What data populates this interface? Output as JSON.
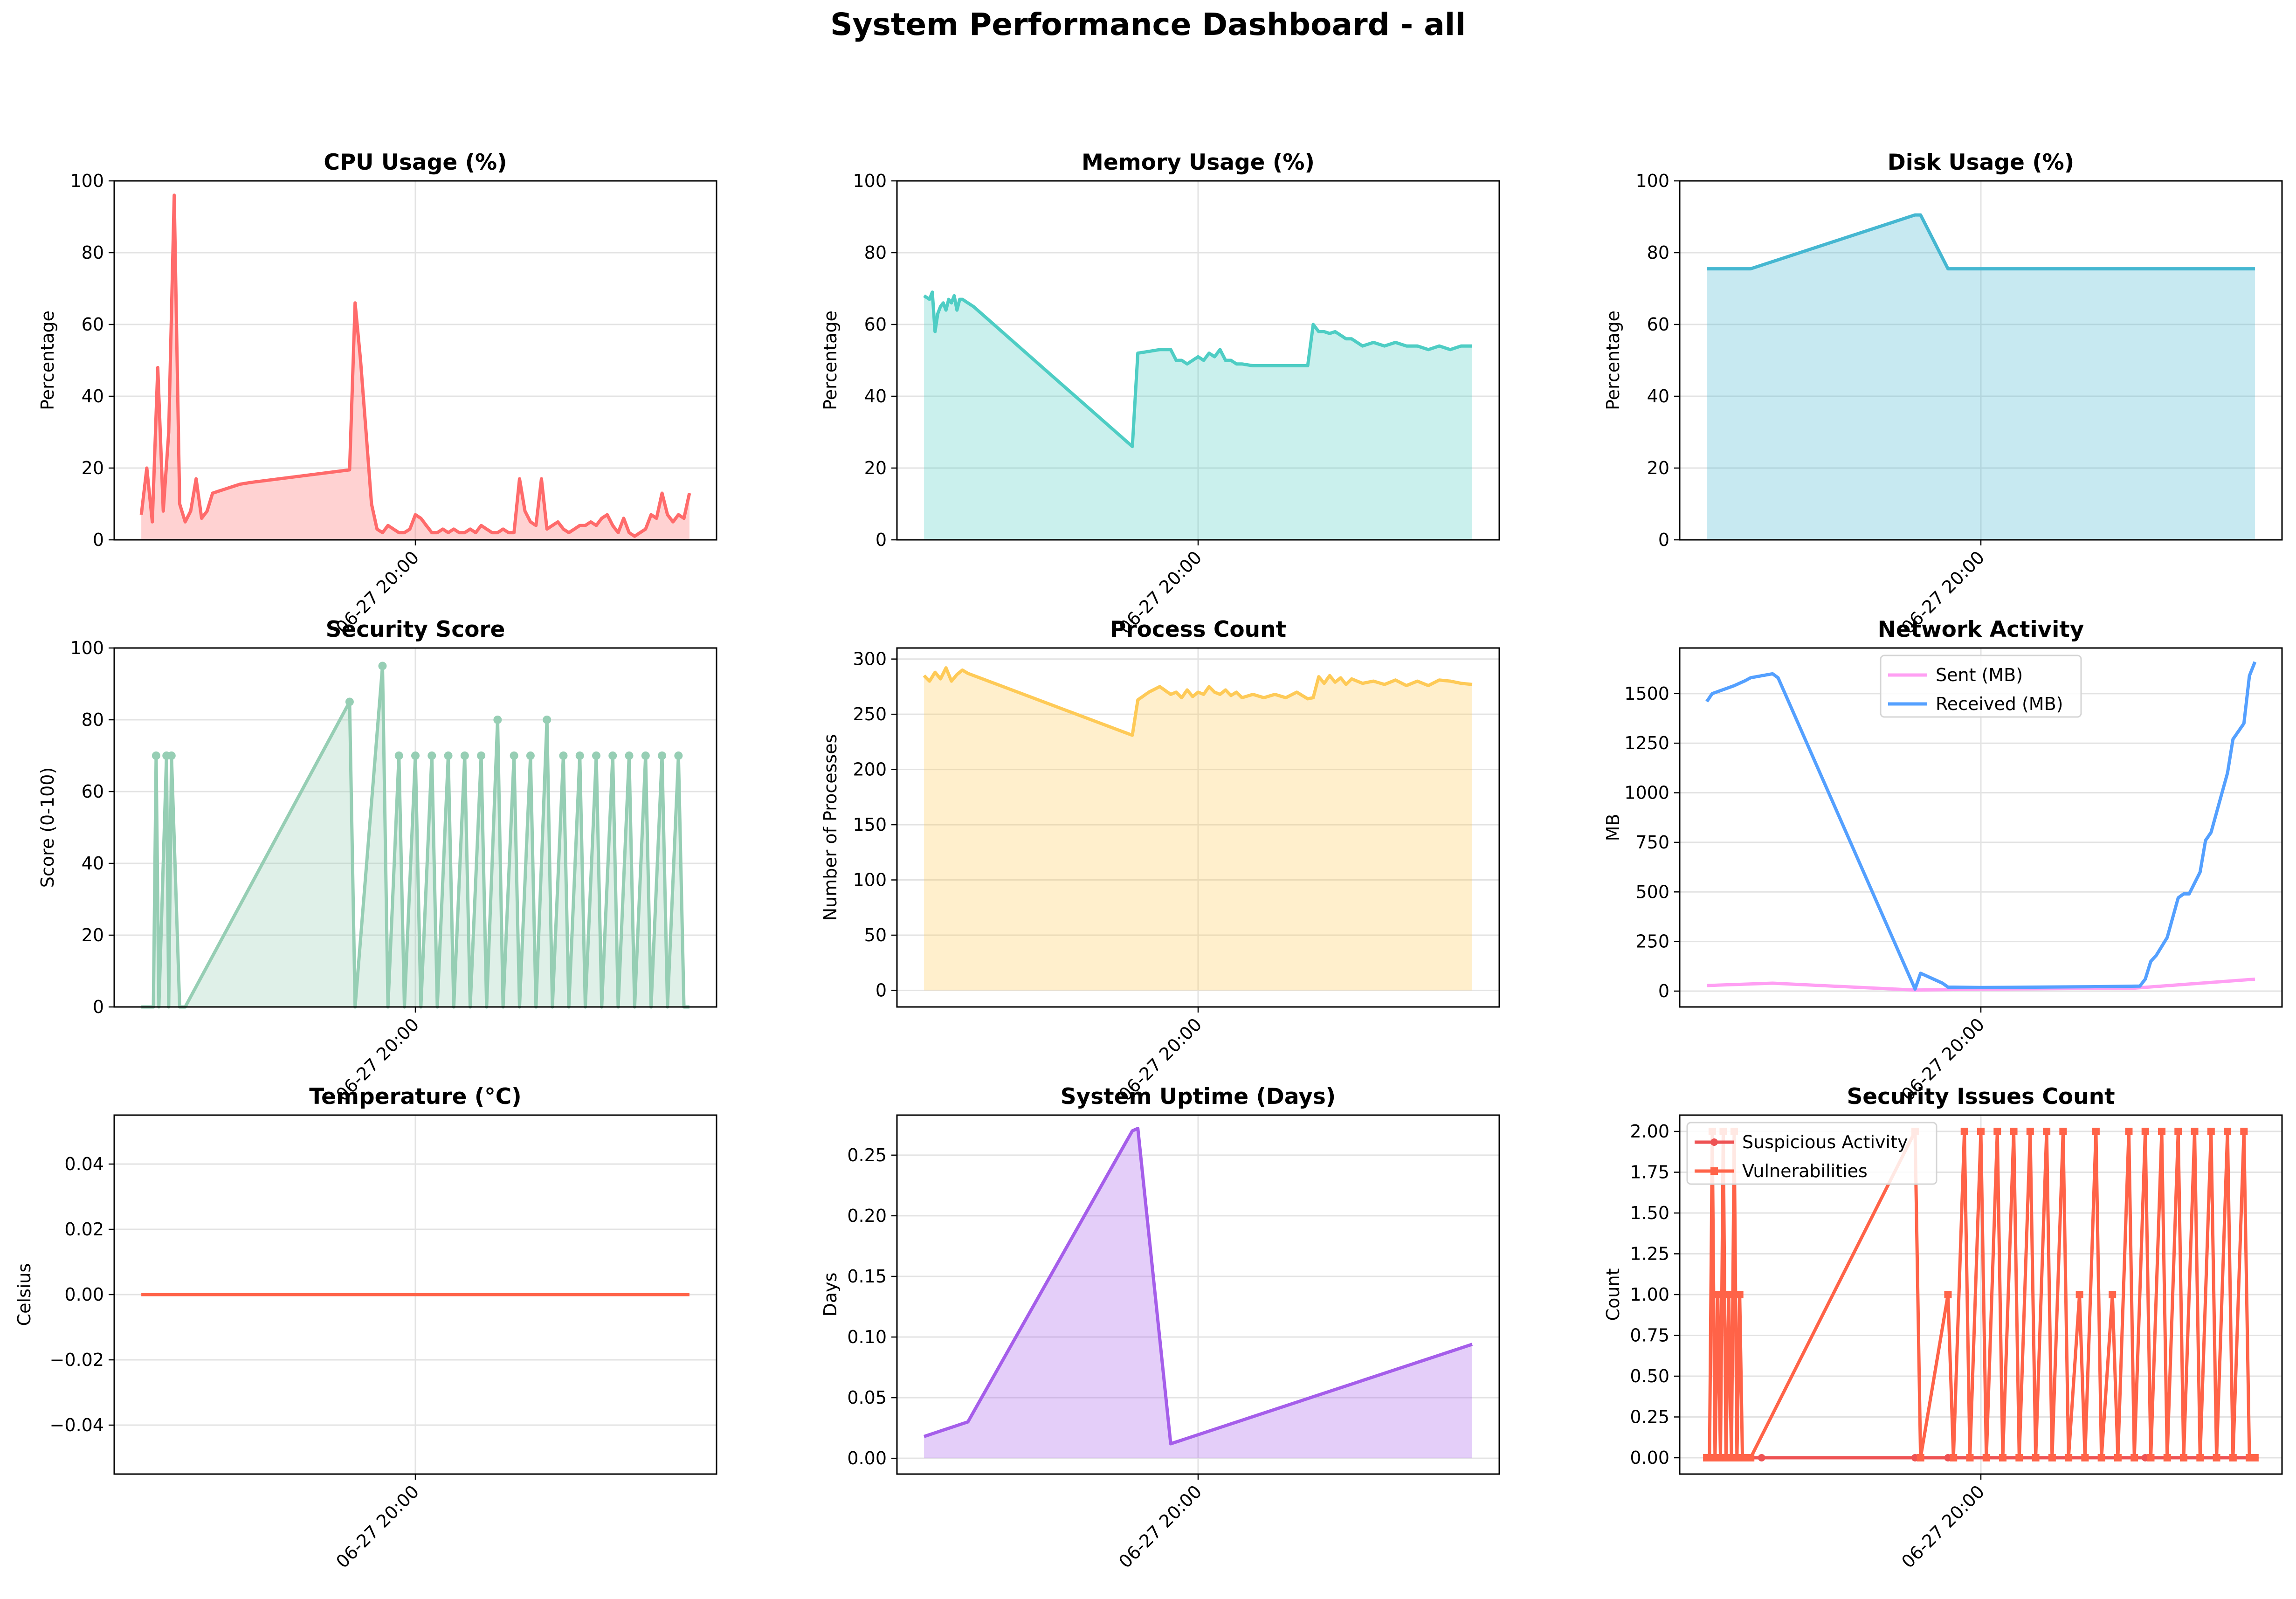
{
  "title": "System Performance Dashboard - all",
  "chart_data": [
    {
      "id": "cpu",
      "type": "area",
      "title": "CPU Usage (%)",
      "ylabel": "Percentage",
      "xlabel": "",
      "x_tick_label": "06-27 20:00",
      "ylim": [
        0,
        100
      ],
      "yticks": [
        "0",
        "20",
        "40",
        "60",
        "80",
        "100"
      ],
      "grid": true,
      "series": [
        {
          "color": "#ff6b6b",
          "fill": true,
          "x": [
            0,
            0.01,
            0.02,
            0.03,
            0.04,
            0.05,
            0.06,
            0.07,
            0.08,
            0.09,
            0.1,
            0.11,
            0.12,
            0.13,
            0.14,
            0.15,
            0.16,
            0.17,
            0.18,
            0.2,
            0.38,
            0.39,
            0.4,
            0.41,
            0.42,
            0.43,
            0.44,
            0.45,
            0.46,
            0.47,
            0.48,
            0.49,
            0.5,
            0.51,
            0.52,
            0.53,
            0.54,
            0.55,
            0.56,
            0.57,
            0.58,
            0.59,
            0.6,
            0.61,
            0.62,
            0.63,
            0.64,
            0.65,
            0.66,
            0.67,
            0.68,
            0.69,
            0.7,
            0.71,
            0.72,
            0.73,
            0.74,
            0.75,
            0.76,
            0.77,
            0.78,
            0.79,
            0.8,
            0.81,
            0.82,
            0.83,
            0.84,
            0.85,
            0.86,
            0.87,
            0.88,
            0.89,
            0.9,
            0.91,
            0.92,
            0.93,
            0.94,
            0.95,
            0.96,
            0.97,
            0.98,
            0.99,
            1.0
          ],
          "y": [
            7,
            20,
            5,
            48,
            8,
            30,
            96,
            10,
            5,
            8,
            17,
            6,
            8,
            13,
            13.5,
            14,
            14.5,
            15,
            15.5,
            16,
            19.5,
            66,
            50,
            30,
            10,
            3,
            2,
            4,
            3,
            2,
            2,
            3,
            7,
            6,
            4,
            2,
            2,
            3,
            2,
            3,
            2,
            2,
            3,
            2,
            4,
            3,
            2,
            2,
            3,
            2,
            2,
            17,
            8,
            5,
            4,
            17,
            3,
            4,
            5,
            3,
            2,
            3,
            4,
            4,
            5,
            4,
            6,
            7,
            4,
            2,
            6,
            2,
            1,
            2,
            3,
            7,
            6,
            13,
            7,
            5,
            7,
            6,
            13
          ]
        }
      ]
    },
    {
      "id": "memory",
      "type": "area",
      "title": "Memory Usage (%)",
      "ylabel": "Percentage",
      "xlabel": "",
      "x_tick_label": "06-27 20:00",
      "ylim": [
        0,
        100
      ],
      "yticks": [
        "0",
        "20",
        "40",
        "60",
        "80",
        "100"
      ],
      "grid": true,
      "series": [
        {
          "color": "#4ecdc4",
          "fill": true,
          "x": [
            0,
            0.01,
            0.015,
            0.02,
            0.025,
            0.03,
            0.035,
            0.04,
            0.045,
            0.05,
            0.055,
            0.06,
            0.065,
            0.07,
            0.08,
            0.09,
            0.38,
            0.39,
            0.41,
            0.43,
            0.45,
            0.46,
            0.47,
            0.48,
            0.49,
            0.5,
            0.51,
            0.52,
            0.53,
            0.54,
            0.55,
            0.56,
            0.57,
            0.58,
            0.6,
            0.62,
            0.64,
            0.66,
            0.68,
            0.7,
            0.71,
            0.72,
            0.73,
            0.74,
            0.75,
            0.76,
            0.77,
            0.78,
            0.8,
            0.82,
            0.84,
            0.86,
            0.88,
            0.9,
            0.92,
            0.94,
            0.96,
            0.98,
            1.0
          ],
          "y": [
            68,
            67,
            69,
            58,
            63,
            65,
            66,
            64,
            67,
            66,
            68,
            64,
            67,
            67,
            66,
            65,
            26,
            52,
            52.5,
            53,
            53,
            50,
            50,
            49,
            50,
            51,
            50,
            52,
            51,
            53,
            50,
            50,
            49,
            49,
            48.5,
            48.5,
            48.5,
            48.5,
            48.5,
            48.5,
            60,
            58,
            58,
            57.5,
            58,
            57,
            56,
            56,
            54,
            55,
            54,
            55,
            54,
            54,
            53,
            54,
            53,
            54,
            54
          ]
        }
      ]
    },
    {
      "id": "disk",
      "type": "area",
      "title": "Disk Usage (%)",
      "ylabel": "Percentage",
      "xlabel": "",
      "x_tick_label": "06-27 20:00",
      "ylim": [
        0,
        100
      ],
      "yticks": [
        "0",
        "20",
        "40",
        "60",
        "80",
        "100"
      ],
      "grid": true,
      "series": [
        {
          "color": "#45b7d1",
          "fill": true,
          "x": [
            0,
            0.08,
            0.38,
            0.39,
            0.44,
            1.0
          ],
          "y": [
            75.5,
            75.5,
            90.5,
            90.5,
            75.5,
            75.5
          ]
        }
      ]
    },
    {
      "id": "security-score",
      "type": "stem-area",
      "title": "Security Score",
      "ylabel": "Score (0-100)",
      "xlabel": "",
      "x_tick_label": "06-27 20:00",
      "ylim": [
        0,
        100
      ],
      "yticks": [
        "0",
        "20",
        "40",
        "60",
        "80",
        "100"
      ],
      "grid": true,
      "series": [
        {
          "color": "#96ceb4",
          "fill": true,
          "markers": true,
          "x": [
            0,
            0.022,
            0.027,
            0.032,
            0.046,
            0.05,
            0.055,
            0.07,
            0.08,
            0.38,
            0.39,
            0.44,
            0.45,
            0.47,
            0.48,
            0.5,
            0.51,
            0.53,
            0.54,
            0.56,
            0.57,
            0.59,
            0.6,
            0.62,
            0.63,
            0.65,
            0.66,
            0.68,
            0.69,
            0.71,
            0.72,
            0.74,
            0.75,
            0.77,
            0.78,
            0.8,
            0.81,
            0.83,
            0.84,
            0.86,
            0.87,
            0.89,
            0.9,
            0.92,
            0.93,
            0.95,
            0.96,
            0.98,
            0.99,
            1.0
          ],
          "y": [
            0,
            0,
            70,
            0,
            70,
            0,
            70,
            0,
            0,
            85,
            0,
            95,
            0,
            70,
            0,
            70,
            0,
            70,
            0,
            70,
            0,
            70,
            0,
            70,
            0,
            80,
            0,
            70,
            0,
            70,
            0,
            80,
            0,
            70,
            0,
            70,
            0,
            70,
            0,
            70,
            0,
            70,
            0,
            70,
            0,
            70,
            0,
            70,
            0,
            0
          ]
        }
      ]
    },
    {
      "id": "process-count",
      "type": "area",
      "title": "Process Count",
      "ylabel": "Number of Processes",
      "xlabel": "",
      "x_tick_label": "06-27 20:00",
      "ylim": [
        -15,
        310
      ],
      "yticks": [
        "0",
        "50",
        "100",
        "150",
        "200",
        "250",
        "300"
      ],
      "grid": true,
      "series": [
        {
          "color": "#feca57",
          "fill": true,
          "x": [
            0,
            0.01,
            0.02,
            0.03,
            0.04,
            0.05,
            0.06,
            0.07,
            0.08,
            0.38,
            0.39,
            0.41,
            0.43,
            0.45,
            0.46,
            0.47,
            0.48,
            0.49,
            0.5,
            0.51,
            0.52,
            0.53,
            0.54,
            0.55,
            0.56,
            0.57,
            0.58,
            0.6,
            0.62,
            0.64,
            0.66,
            0.68,
            0.7,
            0.71,
            0.72,
            0.73,
            0.74,
            0.75,
            0.76,
            0.77,
            0.78,
            0.8,
            0.82,
            0.84,
            0.86,
            0.88,
            0.9,
            0.92,
            0.94,
            0.96,
            0.98,
            1.0
          ],
          "y": [
            285,
            280,
            288,
            282,
            292,
            280,
            286,
            290,
            287,
            231,
            263,
            270,
            275,
            268,
            270,
            265,
            272,
            266,
            270,
            268,
            275,
            270,
            268,
            272,
            267,
            270,
            265,
            268,
            265,
            268,
            265,
            270,
            264,
            265,
            284,
            278,
            285,
            279,
            283,
            277,
            282,
            278,
            280,
            277,
            281,
            276,
            280,
            276,
            281,
            280,
            278,
            277
          ]
        }
      ]
    },
    {
      "id": "network",
      "type": "line",
      "title": "Network Activity",
      "ylabel": "MB",
      "xlabel": "",
      "x_tick_label": "06-27 20:00",
      "ylim": [
        -80,
        1730
      ],
      "yticks": [
        "0",
        "250",
        "500",
        "750",
        "1000",
        "1250",
        "1500"
      ],
      "grid": true,
      "legend": {
        "position": "upper center",
        "entries": [
          "Sent (MB)",
          "Received (MB)"
        ]
      },
      "series": [
        {
          "name": "Sent (MB)",
          "color": "#ff9ff3",
          "x": [
            0,
            0.12,
            0.38,
            0.5,
            0.78,
            1.0
          ],
          "y": [
            28,
            40,
            5,
            10,
            15,
            60
          ]
        },
        {
          "name": "Received (MB)",
          "color": "#54a0ff",
          "x": [
            0,
            0.01,
            0.03,
            0.05,
            0.07,
            0.08,
            0.1,
            0.12,
            0.13,
            0.38,
            0.39,
            0.43,
            0.44,
            0.5,
            0.6,
            0.7,
            0.79,
            0.8,
            0.81,
            0.82,
            0.84,
            0.86,
            0.87,
            0.88,
            0.9,
            0.91,
            0.92,
            0.94,
            0.95,
            0.96,
            0.98,
            0.99,
            1.0
          ],
          "y": [
            1460,
            1500,
            1520,
            1540,
            1565,
            1580,
            1590,
            1600,
            1580,
            10,
            90,
            40,
            20,
            18,
            20,
            22,
            25,
            60,
            150,
            180,
            270,
            470,
            490,
            490,
            600,
            760,
            800,
            1000,
            1100,
            1270,
            1350,
            1590,
            1660
          ]
        }
      ]
    },
    {
      "id": "temperature",
      "type": "line",
      "title": "Temperature (°C)",
      "ylabel": "Celsius",
      "xlabel": "",
      "x_tick_label": "06-27 20:00",
      "ylim": [
        -0.055,
        0.055
      ],
      "yticks": [
        "0.04",
        "0.02",
        "0.00",
        "−0.02",
        "−0.04"
      ],
      "grid": true,
      "series": [
        {
          "color": "#ff6348",
          "x": [
            0,
            1.0
          ],
          "y": [
            0,
            0
          ]
        }
      ]
    },
    {
      "id": "uptime",
      "type": "area",
      "title": "System Uptime (Days)",
      "ylabel": "Days",
      "xlabel": "",
      "x_tick_label": "06-27 20:00",
      "ylim": [
        -0.013,
        0.283
      ],
      "yticks": [
        "0.00",
        "0.05",
        "0.10",
        "0.15",
        "0.20",
        "0.25"
      ],
      "grid": true,
      "series": [
        {
          "color": "#a55eea",
          "fill": true,
          "x": [
            0,
            0.08,
            0.38,
            0.39,
            0.45,
            1.0
          ],
          "y": [
            0.018,
            0.03,
            0.27,
            0.272,
            0.012,
            0.094
          ]
        }
      ]
    },
    {
      "id": "security-issues",
      "type": "line",
      "title": "Security Issues Count",
      "ylabel": "Count",
      "xlabel": "",
      "x_tick_label": "06-27 20:00",
      "ylim": [
        -0.1,
        2.1
      ],
      "yticks": [
        "0.00",
        "0.25",
        "0.50",
        "0.75",
        "1.00",
        "1.25",
        "1.50",
        "1.75",
        "2.00"
      ],
      "grid": true,
      "legend": {
        "position": "upper left",
        "entries": [
          "Suspicious Activity",
          "Vulnerabilities"
        ]
      },
      "series": [
        {
          "name": "Suspicious Activity",
          "color": "#ee5253",
          "marker": "circle",
          "x": [
            0,
            0.1,
            0.38,
            0.39,
            0.44,
            0.6,
            0.8,
            1.0
          ],
          "y": [
            0,
            0,
            0,
            0,
            0,
            0,
            0,
            0
          ]
        },
        {
          "name": "Vulnerabilities",
          "color": "#ff6348",
          "marker": "square",
          "x": [
            0,
            0.005,
            0.01,
            0.015,
            0.02,
            0.025,
            0.03,
            0.035,
            0.04,
            0.045,
            0.05,
            0.055,
            0.06,
            0.065,
            0.07,
            0.08,
            0.38,
            0.39,
            0.44,
            0.45,
            0.47,
            0.48,
            0.5,
            0.51,
            0.53,
            0.54,
            0.56,
            0.57,
            0.59,
            0.6,
            0.62,
            0.63,
            0.65,
            0.66,
            0.68,
            0.69,
            0.71,
            0.72,
            0.74,
            0.75,
            0.77,
            0.78,
            0.8,
            0.81,
            0.83,
            0.84,
            0.86,
            0.87,
            0.89,
            0.9,
            0.92,
            0.93,
            0.95,
            0.96,
            0.98,
            0.99,
            1.0
          ],
          "y": [
            0,
            0,
            2,
            0,
            1,
            0,
            2,
            0,
            1,
            0,
            2,
            0,
            1,
            0,
            0,
            0,
            2,
            0,
            1,
            0,
            2,
            0,
            2,
            0,
            2,
            0,
            2,
            0,
            2,
            0,
            2,
            0,
            2,
            0,
            1,
            0,
            2,
            0,
            1,
            0,
            2,
            0,
            2,
            0,
            2,
            0,
            2,
            0,
            2,
            0,
            2,
            0,
            2,
            0,
            2,
            0,
            0
          ]
        }
      ]
    }
  ]
}
